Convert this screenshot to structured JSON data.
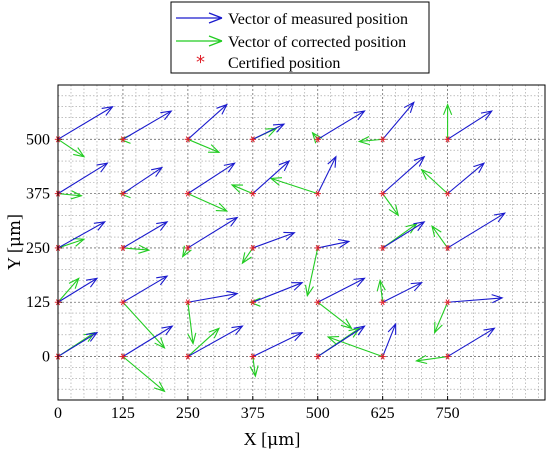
{
  "chart_data": {
    "type": "scatter",
    "xlabel_prefix": "X [",
    "xlabel_unit": "μm",
    "xlabel_suffix": "]",
    "ylabel_prefix": "Y [",
    "ylabel_unit": "μm",
    "ylabel_suffix": "]",
    "xlim": [
      0,
      937.5
    ],
    "ylim": [
      -100,
      625
    ],
    "xticks": [
      0,
      125,
      250,
      375,
      500,
      625,
      750
    ],
    "yticks": [
      0,
      125,
      250,
      375,
      500
    ],
    "grid": true,
    "grid_step": 25,
    "legend": {
      "placement": "top-center",
      "entries": [
        {
          "label": "Vector of measured position",
          "color": "#1a1acd",
          "marker": "arrow"
        },
        {
          "label": "Vector of corrected position",
          "color": "#22cc22",
          "marker": "arrow"
        },
        {
          "label": "Certified position",
          "color": "#e0202a",
          "marker": "*"
        }
      ]
    },
    "colors": {
      "measured": "#1a1acd",
      "corrected": "#22cc22",
      "certified": "#e0202a"
    },
    "certified_positions": [
      [
        0,
        0
      ],
      [
        125,
        0
      ],
      [
        250,
        0
      ],
      [
        375,
        0
      ],
      [
        500,
        0
      ],
      [
        625,
        0
      ],
      [
        750,
        0
      ],
      [
        0,
        125
      ],
      [
        125,
        125
      ],
      [
        250,
        125
      ],
      [
        375,
        125
      ],
      [
        500,
        125
      ],
      [
        625,
        125
      ],
      [
        750,
        125
      ],
      [
        0,
        250
      ],
      [
        125,
        250
      ],
      [
        250,
        250
      ],
      [
        375,
        250
      ],
      [
        500,
        250
      ],
      [
        625,
        250
      ],
      [
        750,
        250
      ],
      [
        0,
        375
      ],
      [
        125,
        375
      ],
      [
        250,
        375
      ],
      [
        375,
        375
      ],
      [
        500,
        375
      ],
      [
        625,
        375
      ],
      [
        750,
        375
      ],
      [
        0,
        500
      ],
      [
        125,
        500
      ],
      [
        250,
        500
      ],
      [
        375,
        500
      ],
      [
        500,
        500
      ],
      [
        625,
        500
      ],
      [
        750,
        500
      ]
    ],
    "measured_vectors": [
      {
        "from": [
          0,
          0
        ],
        "to": [
          75,
          55
        ]
      },
      {
        "from": [
          125,
          0
        ],
        "to": [
          220,
          70
        ]
      },
      {
        "from": [
          250,
          0
        ],
        "to": [
          355,
          70
        ]
      },
      {
        "from": [
          375,
          0
        ],
        "to": [
          470,
          55
        ]
      },
      {
        "from": [
          500,
          0
        ],
        "to": [
          590,
          70
        ]
      },
      {
        "from": [
          625,
          0
        ],
        "to": [
          650,
          75
        ]
      },
      {
        "from": [
          750,
          0
        ],
        "to": [
          840,
          65
        ]
      },
      {
        "from": [
          0,
          125
        ],
        "to": [
          75,
          180
        ]
      },
      {
        "from": [
          125,
          125
        ],
        "to": [
          210,
          185
        ]
      },
      {
        "from": [
          250,
          125
        ],
        "to": [
          345,
          145
        ]
      },
      {
        "from": [
          375,
          125
        ],
        "to": [
          470,
          170
        ]
      },
      {
        "from": [
          500,
          125
        ],
        "to": [
          590,
          180
        ]
      },
      {
        "from": [
          625,
          125
        ],
        "to": [
          700,
          170
        ]
      },
      {
        "from": [
          750,
          125
        ],
        "to": [
          855,
          135
        ]
      },
      {
        "from": [
          0,
          250
        ],
        "to": [
          90,
          310
        ]
      },
      {
        "from": [
          125,
          250
        ],
        "to": [
          210,
          310
        ]
      },
      {
        "from": [
          250,
          250
        ],
        "to": [
          345,
          320
        ]
      },
      {
        "from": [
          375,
          250
        ],
        "to": [
          455,
          285
        ]
      },
      {
        "from": [
          500,
          250
        ],
        "to": [
          560,
          265
        ]
      },
      {
        "from": [
          625,
          250
        ],
        "to": [
          705,
          310
        ]
      },
      {
        "from": [
          750,
          250
        ],
        "to": [
          860,
          330
        ]
      },
      {
        "from": [
          0,
          375
        ],
        "to": [
          95,
          445
        ]
      },
      {
        "from": [
          125,
          375
        ],
        "to": [
          200,
          435
        ]
      },
      {
        "from": [
          250,
          375
        ],
        "to": [
          340,
          445
        ]
      },
      {
        "from": [
          375,
          375
        ],
        "to": [
          445,
          450
        ]
      },
      {
        "from": [
          500,
          375
        ],
        "to": [
          535,
          460
        ]
      },
      {
        "from": [
          625,
          375
        ],
        "to": [
          705,
          460
        ]
      },
      {
        "from": [
          750,
          375
        ],
        "to": [
          820,
          445
        ]
      },
      {
        "from": [
          0,
          500
        ],
        "to": [
          105,
          575
        ]
      },
      {
        "from": [
          125,
          500
        ],
        "to": [
          218,
          565
        ]
      },
      {
        "from": [
          250,
          500
        ],
        "to": [
          325,
          580
        ]
      },
      {
        "from": [
          375,
          500
        ],
        "to": [
          435,
          535
        ]
      },
      {
        "from": [
          500,
          500
        ],
        "to": [
          590,
          565
        ]
      },
      {
        "from": [
          625,
          500
        ],
        "to": [
          685,
          585
        ]
      },
      {
        "from": [
          750,
          500
        ],
        "to": [
          835,
          565
        ]
      }
    ],
    "corrected_vectors": [
      {
        "from": [
          0,
          0
        ],
        "to": [
          70,
          55
        ]
      },
      {
        "from": [
          125,
          0
        ],
        "to": [
          205,
          -80
        ]
      },
      {
        "from": [
          250,
          0
        ],
        "to": [
          310,
          65
        ]
      },
      {
        "from": [
          375,
          0
        ],
        "to": [
          380,
          -45
        ]
      },
      {
        "from": [
          500,
          0
        ],
        "to": [
          580,
          65
        ]
      },
      {
        "from": [
          625,
          0
        ],
        "to": [
          520,
          45
        ]
      },
      {
        "from": [
          750,
          0
        ],
        "to": [
          690,
          -10
        ]
      },
      {
        "from": [
          0,
          125
        ],
        "to": [
          40,
          180
        ]
      },
      {
        "from": [
          125,
          125
        ],
        "to": [
          205,
          20
        ]
      },
      {
        "from": [
          250,
          125
        ],
        "to": [
          260,
          30
        ]
      },
      {
        "from": [
          375,
          125
        ],
        "to": [
          370,
          125
        ]
      },
      {
        "from": [
          500,
          125
        ],
        "to": [
          565,
          65
        ]
      },
      {
        "from": [
          625,
          125
        ],
        "to": [
          620,
          175
        ]
      },
      {
        "from": [
          750,
          125
        ],
        "to": [
          725,
          55
        ]
      },
      {
        "from": [
          0,
          250
        ],
        "to": [
          50,
          270
        ]
      },
      {
        "from": [
          125,
          250
        ],
        "to": [
          175,
          245
        ]
      },
      {
        "from": [
          250,
          250
        ],
        "to": [
          240,
          230
        ]
      },
      {
        "from": [
          375,
          250
        ],
        "to": [
          355,
          215
        ]
      },
      {
        "from": [
          500,
          250
        ],
        "to": [
          480,
          140
        ]
      },
      {
        "from": [
          625,
          250
        ],
        "to": [
          690,
          305
        ]
      },
      {
        "from": [
          750,
          250
        ],
        "to": [
          720,
          300
        ]
      },
      {
        "from": [
          0,
          375
        ],
        "to": [
          45,
          370
        ]
      },
      {
        "from": [
          125,
          375
        ],
        "to": [
          120,
          375
        ]
      },
      {
        "from": [
          250,
          375
        ],
        "to": [
          325,
          335
        ]
      },
      {
        "from": [
          375,
          375
        ],
        "to": [
          335,
          395
        ]
      },
      {
        "from": [
          500,
          375
        ],
        "to": [
          410,
          410
        ]
      },
      {
        "from": [
          625,
          375
        ],
        "to": [
          655,
          325
        ]
      },
      {
        "from": [
          750,
          375
        ],
        "to": [
          700,
          430
        ]
      },
      {
        "from": [
          0,
          500
        ],
        "to": [
          50,
          460
        ]
      },
      {
        "from": [
          125,
          500
        ],
        "to": [
          120,
          500
        ]
      },
      {
        "from": [
          250,
          500
        ],
        "to": [
          310,
          470
        ]
      },
      {
        "from": [
          375,
          500
        ],
        "to": [
          420,
          525
        ]
      },
      {
        "from": [
          500,
          500
        ],
        "to": [
          490,
          515
        ]
      },
      {
        "from": [
          625,
          500
        ],
        "to": [
          580,
          495
        ]
      },
      {
        "from": [
          750,
          500
        ],
        "to": [
          750,
          580
        ]
      }
    ]
  }
}
